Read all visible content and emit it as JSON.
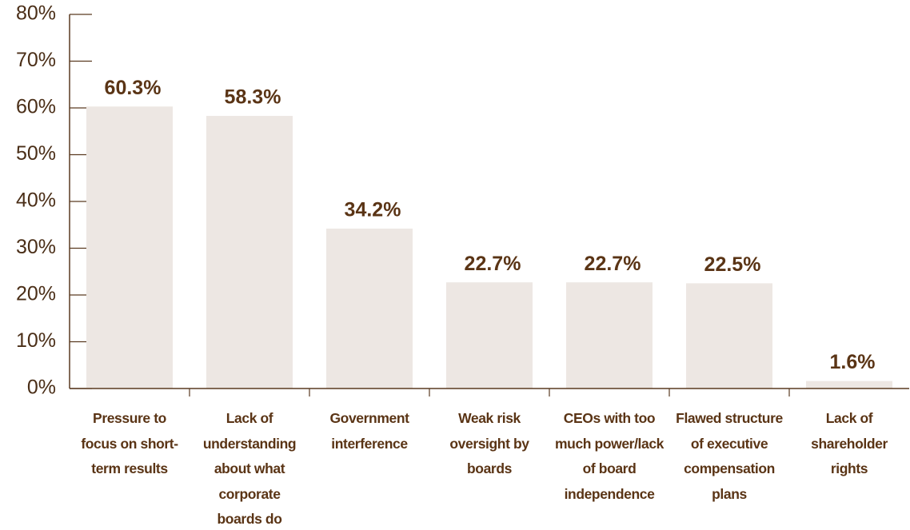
{
  "chart_data": {
    "type": "bar",
    "categories": [
      "Pressure to focus on short-term results",
      "Lack of understanding about what corporate boards do",
      "Government interference",
      "Weak risk oversight by boards",
      "CEOs with too much power/lack of board independence",
      "Flawed structure of executive compensation plans",
      "Lack of shareholder rights"
    ],
    "values": [
      60.3,
      58.3,
      34.2,
      22.7,
      22.7,
      22.5,
      1.6
    ],
    "value_labels": [
      "60.3%",
      "58.3%",
      "34.2%",
      "22.7%",
      "22.7%",
      "22.5%",
      "1.6%"
    ],
    "color": "#ede7e3",
    "ylim": [
      0,
      80
    ],
    "yticks": [
      {
        "value": 0,
        "label": "0%"
      },
      {
        "value": 10,
        "label": "10%"
      },
      {
        "value": 20,
        "label": "20%"
      },
      {
        "value": 30,
        "label": "30%"
      },
      {
        "value": 40,
        "label": "40%"
      },
      {
        "value": 50,
        "label": "50%"
      },
      {
        "value": 60,
        "label": "60%"
      },
      {
        "value": 70,
        "label": "70%"
      },
      {
        "value": 80,
        "label": "80%"
      }
    ]
  }
}
